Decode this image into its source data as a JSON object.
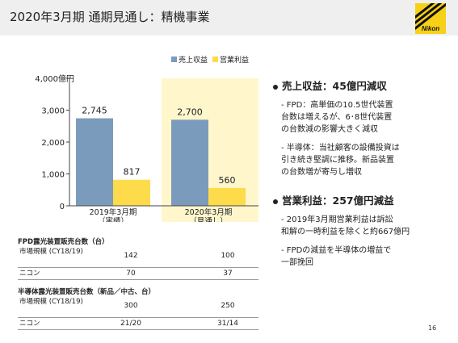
{
  "header": {
    "title": "2020年3月期 通期見通し：精機事業",
    "logo_text": "Nikon"
  },
  "chart_data": {
    "type": "bar",
    "categories": [
      {
        "line1": "2019年3月期",
        "line2": "（実績）"
      },
      {
        "line1": "2020年3月期",
        "line2": "（見通し）"
      }
    ],
    "series": [
      {
        "name": "売上収益",
        "values": [
          2745,
          2700
        ],
        "labels": [
          "2,745",
          "2,700"
        ],
        "color": "#7b9bbd"
      },
      {
        "name": "営業利益",
        "values": [
          817,
          560
        ],
        "labels": [
          "817",
          "560"
        ],
        "color": "#fedb4a"
      }
    ],
    "ylim": [
      0,
      4000
    ],
    "yticks": [
      {
        "value": 0,
        "label": "0"
      },
      {
        "value": 1000,
        "label": "1,000"
      },
      {
        "value": 2000,
        "label": "2,000"
      },
      {
        "value": 3000,
        "label": "3,000"
      },
      {
        "value": 4000,
        "label": "4,000億円"
      }
    ],
    "highlight_color": "#fff6cc",
    "legend_position": "top-right"
  },
  "tables": {
    "fpd": {
      "title": "FPD露光装置販売台数（台）",
      "rows": [
        {
          "label": "市場規模\n(CY18/19)",
          "v1": "142",
          "v2": "100"
        },
        {
          "label": "ニコン",
          "v1": "70",
          "v2": "37"
        }
      ]
    },
    "semi": {
      "title": "半導体露光装置販売台数（新品／中古、台）",
      "rows": [
        {
          "label": "市場規模\n(CY18/19)",
          "v1": "300",
          "v2": "250"
        },
        {
          "label": "ニコン",
          "v1": "21/20",
          "v2": "31/14"
        }
      ]
    }
  },
  "points": [
    {
      "title": "売上収益：45億円減収",
      "items": [
        "- FPD：高単価の10.5世代装置\n  台数は増えるが、6･8世代装置\n  の台数減の影響大きく減収",
        "- 半導体：当社顧客の設備投資は\n  引き続き堅調に推移。新品装置\n  の台数増が寄与し増収"
      ]
    },
    {
      "title": "営業利益：257億円減益",
      "items": [
        "- 2019年3月期営業利益は訴訟\n  和解の一時利益を除くと約667億円",
        "- FPDの減益を半導体の増益で\n  一部挽回"
      ]
    }
  ],
  "page_number": "16"
}
